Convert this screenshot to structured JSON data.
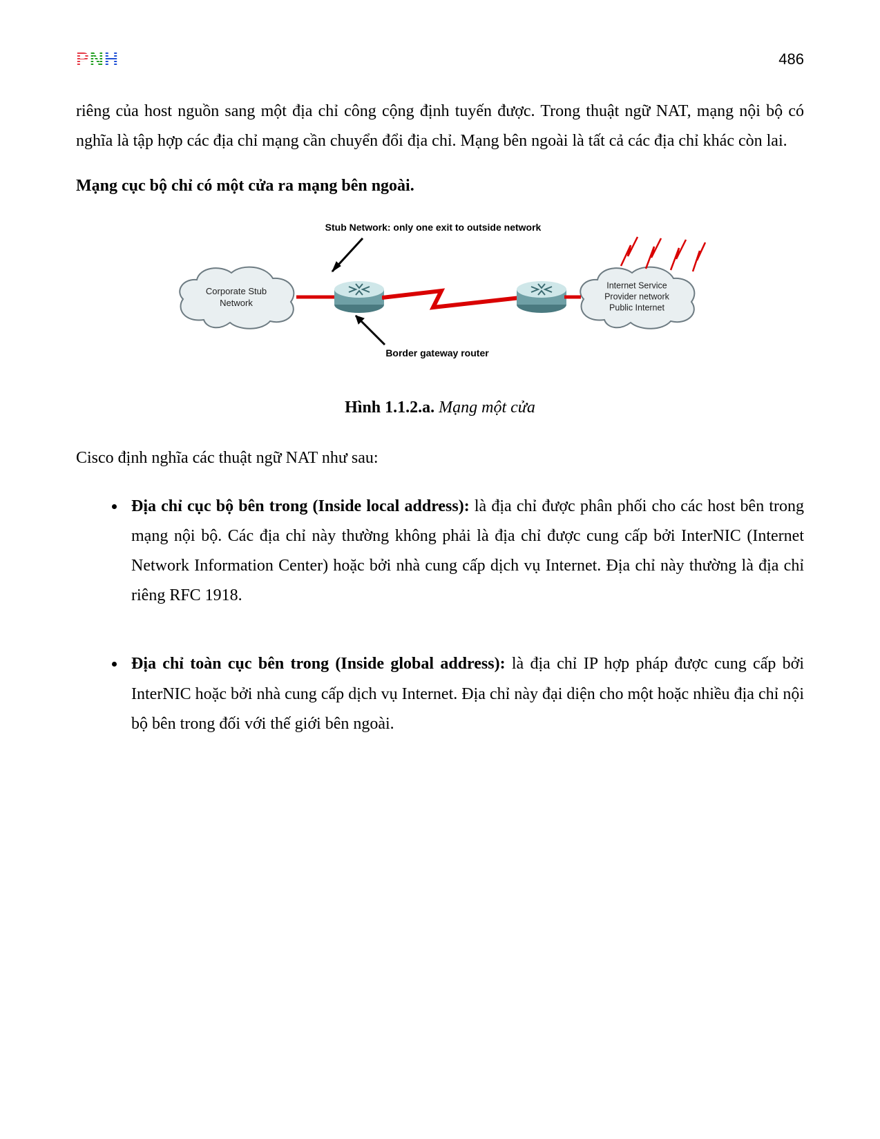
{
  "header": {
    "logo_letters": [
      "P",
      "N",
      "H"
    ],
    "page_number": "486"
  },
  "intro": {
    "para": "riêng của host nguồn sang một địa chỉ công cộng định tuyến được. Trong thuật ngữ NAT, mạng nội bộ có nghĩa là tập hợp các địa chỉ mạng cần chuyển đổi địa chỉ. Mạng bên ngoài là tất cả các địa chỉ khác còn lai.",
    "heading": "Mạng cục bộ chỉ có một cửa ra mạng bên ngoài."
  },
  "diagram": {
    "top_label": "Stub Network: only one exit to outside network",
    "bottom_label": "Border gateway router",
    "left_cloud": "Corporate Stub\nNetwork",
    "right_cloud": "Internet Service\nProvider network\nPublic Internet",
    "colors": {
      "link": "#d90000",
      "cloud_fill": "#e9eff1",
      "cloud_stroke": "#6d7b82",
      "router_body": "#7aaab0",
      "router_top": "#c8e2e4"
    }
  },
  "caption": {
    "label": "Hình 1.1.2.a.",
    "text": "Mạng một cửa"
  },
  "lead": "Cisco định nghĩa các thuật ngữ NAT như sau:",
  "items": [
    {
      "term": "Địa chỉ cục bộ bên trong (Inside local address):",
      "desc": " là địa chỉ được phân phối cho các host bên trong mạng nội bộ. Các địa chỉ này thường không phải là địa chỉ được cung cấp bởi InterNIC (Internet Network Information  Center) hoặc bởi nhà cung cấp dịch vụ Internet. Địa chỉ này thường là địa chỉ riêng RFC 1918."
    },
    {
      "term": "Địa chỉ toàn cục bên trong (Inside global address):",
      "desc": " là địa chỉ IP hợp pháp được cung cấp bởi InterNIC hoặc bởi nhà cung cấp dịch vụ Internet. Địa chỉ này đại diện cho một hoặc nhiều địa chỉ nội bộ bên trong đối với thế giới bên ngoài."
    }
  ]
}
